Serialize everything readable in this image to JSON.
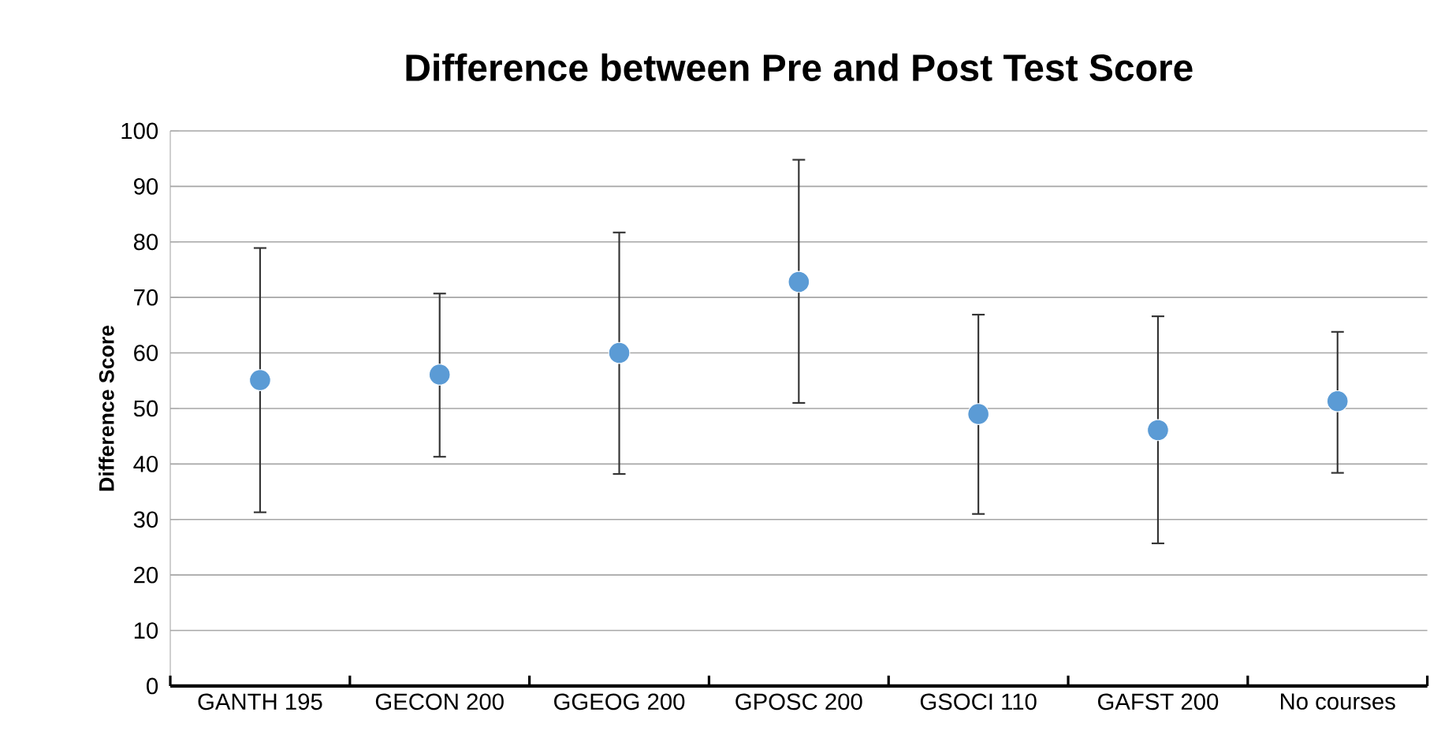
{
  "chart_data": {
    "type": "scatter",
    "title": "Difference between Pre and Post Test Score",
    "ylabel": "Difference Score",
    "categories": [
      "GANTH 195",
      "GECON 200",
      "GGEOG 200",
      "GPOSC 200",
      "GSOCI 110",
      "GAFST 200",
      "No courses"
    ],
    "series": [
      {
        "color": "#5b9bd5",
        "values": [
          55.1,
          56.1,
          60.0,
          72.8,
          49.0,
          46.1,
          51.3
        ],
        "errors": [
          [
            31.3,
            78.9
          ],
          [
            41.3,
            70.7
          ],
          [
            38.2,
            81.7
          ],
          [
            51.0,
            94.8
          ],
          [
            31.0,
            66.9
          ],
          [
            25.7,
            66.6
          ],
          [
            38.4,
            63.8
          ]
        ]
      }
    ],
    "ylim": [
      0,
      100
    ],
    "yticks": [
      0,
      10,
      20,
      30,
      40,
      50,
      60,
      70,
      80,
      90,
      100
    ],
    "grid": "y",
    "marker": "circle"
  }
}
